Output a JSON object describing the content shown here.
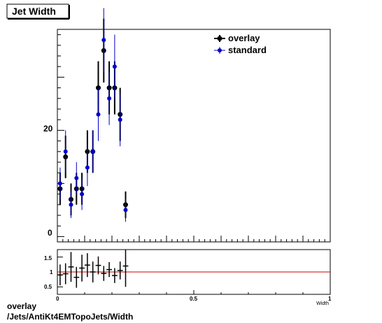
{
  "title_box": "Jet Width",
  "footer": {
    "line1": "overlay",
    "line2": "/Jets/AntiKt4EMTopoJets/Width"
  },
  "colors": {
    "overlay": "#000000",
    "standard": "#0000cc",
    "ratio_line": "#cc0000"
  },
  "chart_data": [
    {
      "type": "scatter",
      "title": "Jet Width",
      "xlabel": "Width",
      "ylabel": "",
      "xlim": [
        0,
        1
      ],
      "ylim": [
        -1,
        39
      ],
      "yticks_labeled": [
        0,
        20
      ],
      "legend_placement": "top-right",
      "series": [
        {
          "name": "overlay",
          "x": [
            0.01,
            0.03,
            0.05,
            0.07,
            0.09,
            0.11,
            0.13,
            0.15,
            0.17,
            0.19,
            0.21,
            0.23,
            0.25
          ],
          "y": [
            9,
            15,
            7,
            9,
            9,
            16,
            16,
            28,
            35,
            28,
            28,
            23,
            6
          ],
          "err": [
            3,
            4,
            3,
            3,
            3,
            4,
            4,
            5,
            6,
            5,
            5,
            5,
            2.5
          ]
        },
        {
          "name": "standard",
          "x": [
            0.01,
            0.03,
            0.05,
            0.07,
            0.09,
            0.11,
            0.13,
            0.15,
            0.17,
            0.19,
            0.21,
            0.23,
            0.25
          ],
          "y": [
            10,
            16,
            6,
            11,
            8,
            13,
            16,
            23,
            37,
            26,
            32,
            22,
            5
          ],
          "err": [
            3,
            4,
            2.5,
            3,
            3,
            3.5,
            4,
            5,
            6,
            5,
            6,
            5,
            2.2
          ]
        }
      ]
    },
    {
      "type": "scatter",
      "title": "",
      "xlabel": "",
      "ylabel": "",
      "xlim": [
        0,
        1
      ],
      "ylim": [
        0.25,
        1.75
      ],
      "xticks_labeled": [
        "0",
        "0.5",
        "1"
      ],
      "yticks_labeled": [
        "0.5",
        "1",
        "1.5"
      ],
      "reference_line": 1,
      "series": [
        {
          "name": "",
          "x": [
            0.01,
            0.03,
            0.05,
            0.07,
            0.09,
            0.11,
            0.13,
            0.15,
            0.17,
            0.19,
            0.21,
            0.23,
            0.25
          ],
          "y": [
            0.9,
            0.94,
            1.17,
            0.82,
            1.13,
            1.23,
            1.0,
            1.22,
            0.95,
            1.08,
            0.88,
            1.05,
            1.2
          ],
          "err": [
            0.35,
            0.35,
            0.5,
            0.35,
            0.45,
            0.4,
            0.35,
            0.3,
            0.25,
            0.25,
            0.25,
            0.3,
            0.7
          ]
        }
      ]
    }
  ]
}
